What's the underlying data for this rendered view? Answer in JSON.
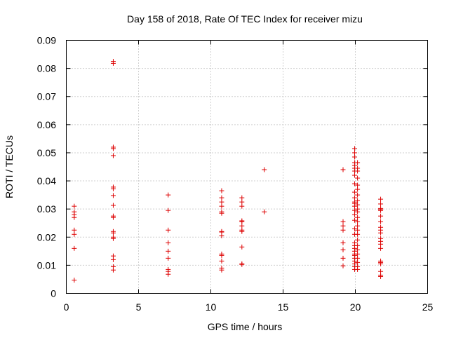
{
  "chart_data": {
    "type": "scatter",
    "title": "Day 158 of 2018, Rate Of TEC Index for receiver mizu",
    "xlabel": "GPS time / hours",
    "ylabel": "ROTI / TECUs",
    "xlim": [
      0,
      25
    ],
    "ylim": [
      0,
      0.09
    ],
    "xticks": [
      0,
      5,
      10,
      15,
      20,
      25
    ],
    "xtick_labels": [
      "0",
      "5",
      "10",
      "15",
      "20",
      "25"
    ],
    "yticks": [
      0,
      0.01,
      0.02,
      0.03,
      0.04,
      0.05,
      0.06,
      0.07,
      0.08,
      0.09
    ],
    "ytick_labels": [
      "0",
      "0.01",
      "0.02",
      "0.03",
      "0.04",
      "0.05",
      "0.06",
      "0.07",
      "0.08",
      "0.09"
    ],
    "grid": true,
    "marker": "+",
    "color": "#dd0000",
    "series": [
      {
        "name": "ROTI",
        "points": [
          [
            0.55,
            0.0047
          ],
          [
            0.55,
            0.016
          ],
          [
            0.55,
            0.021
          ],
          [
            0.55,
            0.0225
          ],
          [
            0.55,
            0.027
          ],
          [
            0.55,
            0.028
          ],
          [
            0.55,
            0.029
          ],
          [
            0.55,
            0.031
          ],
          [
            3.25,
            0.0083
          ],
          [
            3.25,
            0.0095
          ],
          [
            3.25,
            0.012
          ],
          [
            3.25,
            0.0133
          ],
          [
            3.25,
            0.0195
          ],
          [
            3.25,
            0.02
          ],
          [
            3.25,
            0.0215
          ],
          [
            3.25,
            0.022
          ],
          [
            3.25,
            0.027
          ],
          [
            3.25,
            0.0275
          ],
          [
            3.25,
            0.0313
          ],
          [
            3.25,
            0.0348
          ],
          [
            3.25,
            0.0372
          ],
          [
            3.25,
            0.0378
          ],
          [
            3.25,
            0.049
          ],
          [
            3.25,
            0.0515
          ],
          [
            3.25,
            0.052
          ],
          [
            3.25,
            0.0818
          ],
          [
            3.25,
            0.0825
          ],
          [
            7.05,
            0.0068
          ],
          [
            7.05,
            0.0078
          ],
          [
            7.05,
            0.0085
          ],
          [
            7.05,
            0.0125
          ],
          [
            7.05,
            0.015
          ],
          [
            7.05,
            0.018
          ],
          [
            7.05,
            0.0225
          ],
          [
            7.05,
            0.0295
          ],
          [
            7.05,
            0.035
          ],
          [
            10.75,
            0.0083
          ],
          [
            10.75,
            0.009
          ],
          [
            10.75,
            0.0115
          ],
          [
            10.75,
            0.0135
          ],
          [
            10.75,
            0.014
          ],
          [
            10.75,
            0.0205
          ],
          [
            10.75,
            0.0218
          ],
          [
            10.75,
            0.022
          ],
          [
            10.75,
            0.0285
          ],
          [
            10.75,
            0.029
          ],
          [
            10.75,
            0.031
          ],
          [
            10.75,
            0.0325
          ],
          [
            10.75,
            0.034
          ],
          [
            10.75,
            0.0365
          ],
          [
            12.15,
            0.0103
          ],
          [
            12.15,
            0.0105
          ],
          [
            12.15,
            0.0165
          ],
          [
            12.15,
            0.022
          ],
          [
            12.15,
            0.0225
          ],
          [
            12.15,
            0.024
          ],
          [
            12.15,
            0.0255
          ],
          [
            12.15,
            0.0258
          ],
          [
            12.15,
            0.031
          ],
          [
            12.15,
            0.0325
          ],
          [
            12.15,
            0.034
          ],
          [
            13.7,
            0.029
          ],
          [
            13.7,
            0.044
          ],
          [
            19.15,
            0.0098
          ],
          [
            19.15,
            0.0125
          ],
          [
            19.15,
            0.0155
          ],
          [
            19.15,
            0.018
          ],
          [
            19.15,
            0.0225
          ],
          [
            19.15,
            0.024
          ],
          [
            19.15,
            0.0255
          ],
          [
            19.15,
            0.044
          ],
          [
            19.95,
            0.0085
          ],
          [
            19.95,
            0.0095
          ],
          [
            19.95,
            0.0105
          ],
          [
            19.95,
            0.0115
          ],
          [
            19.95,
            0.0125
          ],
          [
            19.95,
            0.0135
          ],
          [
            19.95,
            0.014
          ],
          [
            19.95,
            0.015
          ],
          [
            19.95,
            0.016
          ],
          [
            19.95,
            0.017
          ],
          [
            19.95,
            0.018
          ],
          [
            19.95,
            0.021
          ],
          [
            19.95,
            0.023
          ],
          [
            19.95,
            0.026
          ],
          [
            19.95,
            0.028
          ],
          [
            19.95,
            0.0295
          ],
          [
            19.95,
            0.031
          ],
          [
            19.95,
            0.032
          ],
          [
            19.95,
            0.0325
          ],
          [
            19.95,
            0.034
          ],
          [
            19.95,
            0.036
          ],
          [
            19.95,
            0.039
          ],
          [
            19.95,
            0.042
          ],
          [
            19.95,
            0.0435
          ],
          [
            19.95,
            0.0445
          ],
          [
            19.95,
            0.0455
          ],
          [
            19.95,
            0.0465
          ],
          [
            19.95,
            0.0485
          ],
          [
            19.95,
            0.05
          ],
          [
            19.95,
            0.0515
          ],
          [
            20.15,
            0.0085
          ],
          [
            20.15,
            0.0095
          ],
          [
            20.15,
            0.011
          ],
          [
            20.15,
            0.0125
          ],
          [
            20.15,
            0.014
          ],
          [
            20.15,
            0.0155
          ],
          [
            20.15,
            0.017
          ],
          [
            20.15,
            0.019
          ],
          [
            20.15,
            0.021
          ],
          [
            20.15,
            0.0225
          ],
          [
            20.15,
            0.024
          ],
          [
            20.15,
            0.0255
          ],
          [
            20.15,
            0.027
          ],
          [
            20.15,
            0.029
          ],
          [
            20.15,
            0.03
          ],
          [
            20.15,
            0.0315
          ],
          [
            20.15,
            0.033
          ],
          [
            20.15,
            0.035
          ],
          [
            20.15,
            0.037
          ],
          [
            20.15,
            0.0385
          ],
          [
            20.15,
            0.041
          ],
          [
            20.15,
            0.0435
          ],
          [
            20.15,
            0.0445
          ],
          [
            20.15,
            0.0465
          ],
          [
            21.75,
            0.006
          ],
          [
            21.75,
            0.0065
          ],
          [
            21.75,
            0.0078
          ],
          [
            21.75,
            0.0105
          ],
          [
            21.75,
            0.011
          ],
          [
            21.75,
            0.0115
          ],
          [
            21.75,
            0.016
          ],
          [
            21.75,
            0.0175
          ],
          [
            21.75,
            0.0185
          ],
          [
            21.75,
            0.0195
          ],
          [
            21.75,
            0.0215
          ],
          [
            21.75,
            0.0225
          ],
          [
            21.75,
            0.0235
          ],
          [
            21.75,
            0.0255
          ],
          [
            21.75,
            0.0275
          ],
          [
            21.75,
            0.0295
          ],
          [
            21.75,
            0.0298
          ],
          [
            21.75,
            0.0302
          ],
          [
            21.75,
            0.0318
          ],
          [
            21.75,
            0.0335
          ]
        ]
      }
    ]
  }
}
